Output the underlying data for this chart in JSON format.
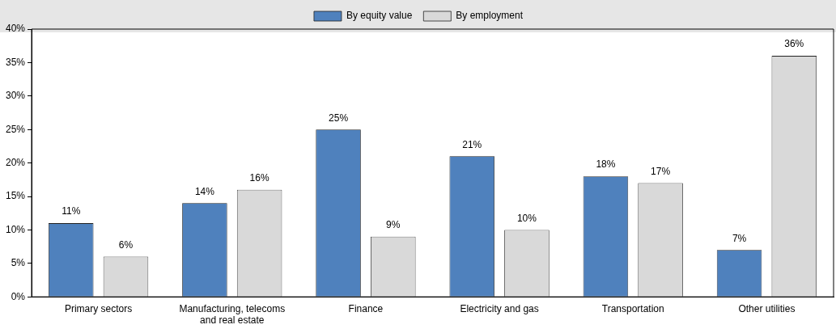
{
  "chart_data": {
    "type": "bar",
    "categories": [
      "Primary sectors",
      "Manufacturing, telecoms and real estate",
      "Finance",
      "Electricity and gas",
      "Transportation",
      "Other utilities"
    ],
    "series": [
      {
        "name": "By equity value",
        "color": "#4f81bd",
        "values": [
          11,
          14,
          25,
          21,
          18,
          7
        ],
        "value_labels": [
          "11%",
          "14%",
          "25%",
          "21%",
          "18%",
          "7%"
        ]
      },
      {
        "name": "By employment",
        "color": "#d9d9d9",
        "values": [
          6,
          16,
          9,
          10,
          17,
          36
        ],
        "value_labels": [
          "6%",
          "16%",
          "9%",
          "10%",
          "17%",
          "36%"
        ]
      }
    ],
    "ylim": [
      0,
      40
    ],
    "yticks": [
      {
        "value": 0,
        "label": "0%"
      },
      {
        "value": 5,
        "label": "5%"
      },
      {
        "value": 10,
        "label": "10%"
      },
      {
        "value": 15,
        "label": "15%"
      },
      {
        "value": 20,
        "label": "20%"
      },
      {
        "value": 25,
        "label": "25%"
      },
      {
        "value": 30,
        "label": "30%"
      },
      {
        "value": 35,
        "label": "35%"
      },
      {
        "value": 40,
        "label": "40%"
      }
    ],
    "grid": false,
    "legend": "top"
  }
}
